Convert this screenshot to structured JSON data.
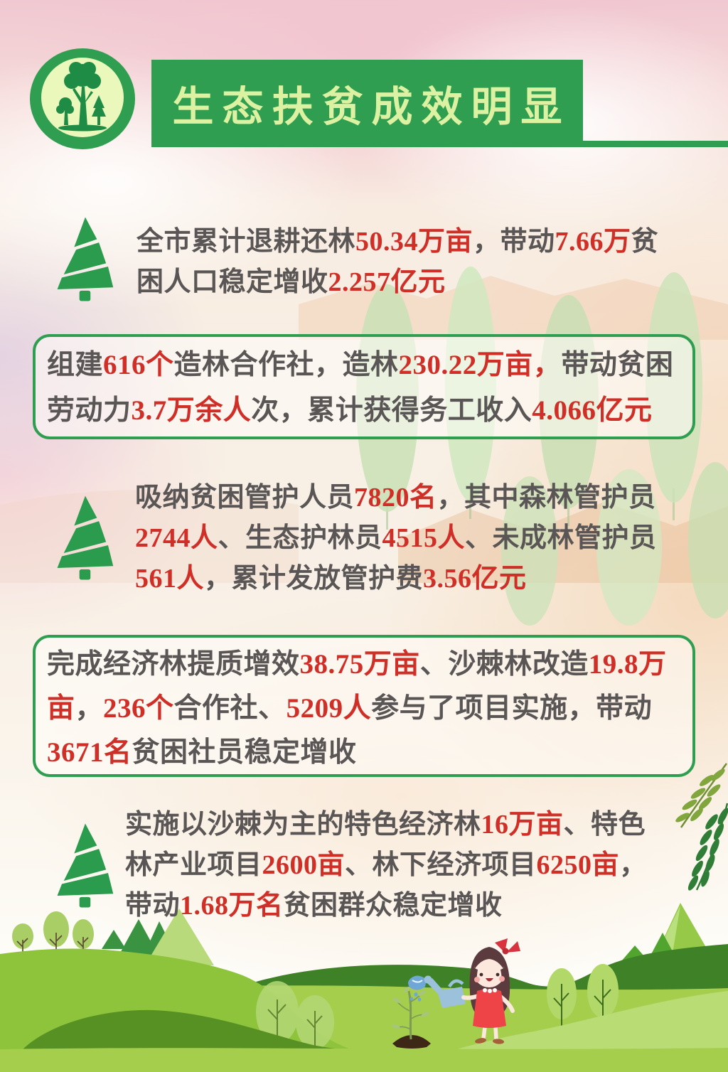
{
  "header": {
    "title": "生态扶贫成效明显"
  },
  "colors": {
    "banner_green": "#2f9e50",
    "banner_title_text": "#dcf2a2",
    "body_text": "#5a5656",
    "highlight_red": "#cf2f27",
    "box_border_green": "#2f9e50"
  },
  "icons": {
    "logo": "trees-badge-icon",
    "bullet": "pine-tree-icon",
    "side": "hanging-leaves-icon",
    "footer": "girl-watering-illustration"
  },
  "blocks": [
    {
      "id": "block-1",
      "style": "bullet",
      "lines": [
        [
          {
            "t": "全市累计退耕还林"
          },
          {
            "t": "50.34万亩",
            "hl": true
          },
          {
            "t": "，带动"
          },
          {
            "t": "7.66万",
            "hl": true
          },
          {
            "t": "贫"
          }
        ],
        [
          {
            "t": "困人口稳定增收"
          },
          {
            "t": "2.257亿元",
            "hl": true
          }
        ]
      ]
    },
    {
      "id": "box-1",
      "style": "box",
      "lines": [
        [
          {
            "t": "组建"
          },
          {
            "t": "616个",
            "hl": true
          },
          {
            "t": "造林合作社，造林"
          },
          {
            "t": "230.22万亩，",
            "hl": true
          },
          {
            "t": "带动贫困"
          }
        ],
        [
          {
            "t": "劳动力"
          },
          {
            "t": "3.7万余人",
            "hl": true
          },
          {
            "t": "次，累计获得务工收入"
          },
          {
            "t": "4.066亿元",
            "hl": true
          }
        ]
      ]
    },
    {
      "id": "block-2",
      "style": "bullet",
      "lines": [
        [
          {
            "t": "吸纳贫困管护人员"
          },
          {
            "t": "7820名",
            "hl": true
          },
          {
            "t": "，其中森林管护员"
          }
        ],
        [
          {
            "t": "2744人",
            "hl": true
          },
          {
            "t": "、生态护林员"
          },
          {
            "t": "4515人",
            "hl": true
          },
          {
            "t": "、未成林管护员"
          }
        ],
        [
          {
            "t": "561人",
            "hl": true
          },
          {
            "t": "，累计发放管护费"
          },
          {
            "t": "3.56亿元",
            "hl": true
          }
        ]
      ]
    },
    {
      "id": "box-2",
      "style": "box",
      "lines": [
        [
          {
            "t": "完成经济林提质增效"
          },
          {
            "t": "38.75万亩",
            "hl": true
          },
          {
            "t": "、沙棘林改造"
          },
          {
            "t": "19.8万",
            "hl": true
          }
        ],
        [
          {
            "t": "亩",
            "hl": true
          },
          {
            "t": "，"
          },
          {
            "t": "236个",
            "hl": true
          },
          {
            "t": "合作社、"
          },
          {
            "t": "5209人",
            "hl": true
          },
          {
            "t": "参与了项目实施，带动"
          }
        ],
        [
          {
            "t": "3671名",
            "hl": true
          },
          {
            "t": "贫困社员稳定增收"
          }
        ]
      ]
    },
    {
      "id": "block-3",
      "style": "bullet",
      "lines": [
        [
          {
            "t": "实施以沙棘为主的特色经济林"
          },
          {
            "t": "16万亩",
            "hl": true
          },
          {
            "t": "、特色"
          }
        ],
        [
          {
            "t": "林产业项目"
          },
          {
            "t": "2600亩",
            "hl": true
          },
          {
            "t": "、林下经济项目"
          },
          {
            "t": "6250亩",
            "hl": true
          },
          {
            "t": "，"
          }
        ],
        [
          {
            "t": "带动"
          },
          {
            "t": "1.68万名",
            "hl": true
          },
          {
            "t": "贫困群众稳定增收"
          }
        ]
      ]
    }
  ]
}
